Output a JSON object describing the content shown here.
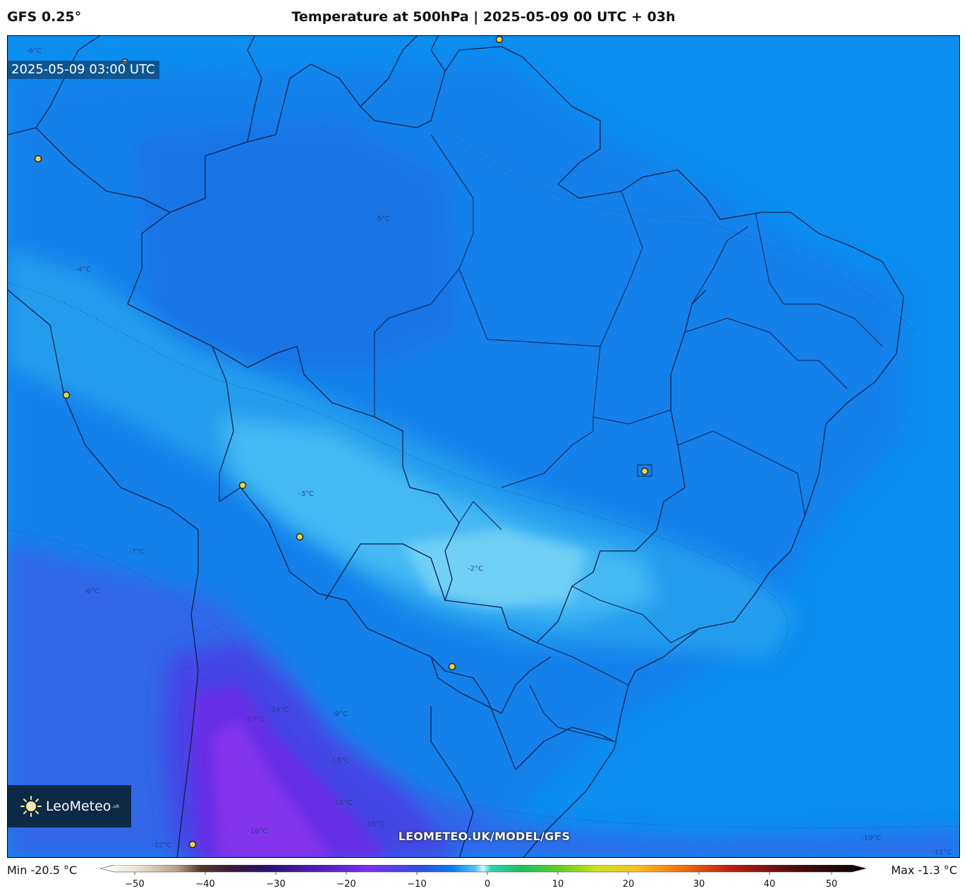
{
  "header": {
    "model": "GFS 0.25°",
    "title": "Temperature at 500hPa | 2025-05-09 00 UTC + 03h"
  },
  "map": {
    "timestamp": "2025-05-09 03:00 UTC",
    "logo_text": "LeoMeteo",
    "logo_suffix": ".uk",
    "watermark": "LEOMETEO.UK/MODEL/GFS",
    "contour_labels": [
      "-6°C",
      "-5°C",
      "-4°C",
      "-3°C",
      "-2°C",
      "-7°C",
      "-8°C",
      "-9°C",
      "-10°C",
      "-11°C",
      "-12°C",
      "-13°C",
      "-14°C",
      "-15°C",
      "-16°C",
      "-17°C",
      "-18°C"
    ],
    "colors": {
      "ocean_field": "#0a8fee",
      "cold_core": "#7a2ee8",
      "warm_band": "#55c8f2"
    }
  },
  "colorbar": {
    "min_label": "Min -20.5 °C",
    "max_label": "Max -1.3 °C",
    "ticks": [
      "−50",
      "−40",
      "−30",
      "−20",
      "−10",
      "0",
      "10",
      "20",
      "30",
      "40",
      "50"
    ]
  }
}
